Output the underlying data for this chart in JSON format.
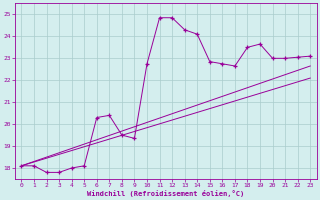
{
  "xlabel": "Windchill (Refroidissement éolien,°C)",
  "bg_color": "#d4eeee",
  "line_color": "#990099",
  "grid_color": "#aacccc",
  "xlim": [
    -0.5,
    23.5
  ],
  "ylim": [
    17.5,
    25.5
  ],
  "yticks": [
    18,
    19,
    20,
    21,
    22,
    23,
    24,
    25
  ],
  "xticks": [
    0,
    1,
    2,
    3,
    4,
    5,
    6,
    7,
    8,
    9,
    10,
    11,
    12,
    13,
    14,
    15,
    16,
    17,
    18,
    19,
    20,
    21,
    22,
    23
  ],
  "line1_x": [
    0,
    1,
    2,
    3,
    4,
    5,
    6,
    7,
    8,
    9,
    10,
    11,
    12,
    13,
    14,
    15,
    16,
    17,
    18,
    19,
    20,
    21,
    22,
    23
  ],
  "line1_y": [
    18.1,
    18.1,
    17.8,
    17.8,
    18.0,
    18.1,
    20.3,
    20.4,
    19.5,
    19.35,
    22.75,
    24.85,
    24.85,
    24.3,
    24.1,
    22.85,
    22.75,
    22.65,
    23.5,
    23.65,
    23.0,
    23.0,
    23.05,
    23.1
  ],
  "line2_x": [
    0,
    23
  ],
  "line2_y": [
    18.1,
    22.65
  ],
  "line3_x": [
    0,
    23
  ],
  "line3_y": [
    18.1,
    22.1
  ]
}
